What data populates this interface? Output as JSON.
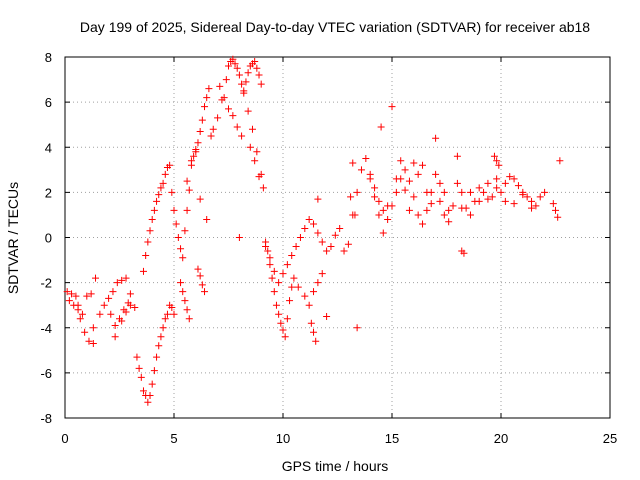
{
  "chart_data": {
    "type": "scatter",
    "title": "Day 199 of 2025, Sidereal Day-to-day VTEC variation (SDTVAR) for receiver ab18",
    "xlabel": "GPS time / hours",
    "ylabel": "SDTVAR / TECUs",
    "xlim": [
      0,
      25
    ],
    "ylim": [
      -8,
      8
    ],
    "xticks": [
      0,
      5,
      10,
      15,
      20,
      25
    ],
    "yticks": [
      -8,
      -6,
      -4,
      -2,
      0,
      2,
      4,
      6,
      8
    ],
    "xtick_labels": [
      "0",
      "5",
      "10",
      "15",
      "20",
      "25"
    ],
    "ytick_labels": [
      "-8",
      "-6",
      "-4",
      "-2",
      "0",
      "2",
      "4",
      "6",
      "8"
    ],
    "grid": true,
    "marker": "+",
    "marker_color": "#ff0000",
    "series": [
      {
        "name": "ab18",
        "x": [
          0.1,
          0.3,
          0.5,
          0.6,
          0.8,
          1.0,
          1.2,
          0.2,
          0.4,
          0.6,
          0.7,
          0.9,
          1.1,
          1.3,
          1.4,
          1.3,
          1.6,
          1.8,
          2.0,
          2.2,
          2.4,
          2.6,
          2.8,
          3.0,
          2.1,
          2.3,
          2.5,
          2.7,
          2.9,
          2.3,
          2.6,
          2.8,
          3.0,
          3.2,
          3.3,
          3.4,
          3.5,
          3.6,
          3.7,
          3.8,
          3.9,
          4.0,
          4.1,
          4.2,
          4.3,
          4.4,
          4.5,
          4.6,
          4.7,
          4.8,
          4.9,
          5.0,
          3.6,
          3.7,
          3.8,
          3.9,
          4.0,
          4.1,
          4.2,
          4.3,
          4.4,
          4.5,
          4.6,
          4.7,
          4.8,
          4.9,
          5.0,
          5.1,
          5.2,
          5.3,
          5.4,
          5.5,
          5.6,
          5.7,
          5.8,
          5.9,
          6.0,
          6.1,
          6.2,
          6.3,
          6.4,
          6.5,
          6.6,
          6.7,
          6.8,
          7.0,
          7.2,
          7.4,
          7.5,
          7.6,
          7.7,
          7.8,
          7.9,
          8.0,
          8.1,
          8.2,
          8.3,
          8.4,
          8.5,
          8.6,
          8.7,
          8.8,
          8.9,
          9.0,
          8.2,
          8.4,
          8.6,
          8.8,
          9.0,
          5.3,
          5.4,
          5.5,
          5.6,
          5.7,
          6.1,
          6.2,
          6.3,
          6.4,
          5.6,
          5.8,
          6.0,
          6.2,
          6.5,
          7.1,
          7.3,
          7.5,
          7.7,
          7.9,
          8.1,
          8.5,
          8.7,
          8.9,
          9.1,
          9.2,
          9.3,
          9.4,
          9.5,
          9.6,
          9.7,
          9.8,
          9.9,
          10.0,
          10.1,
          10.2,
          10.3,
          10.4,
          10.5,
          10.7,
          11.0,
          11.2,
          11.4,
          11.6,
          11.8,
          12.0,
          11.3,
          11.4,
          11.5,
          11.6,
          8.0,
          9.2,
          9.4,
          9.6,
          9.8,
          10.0,
          10.2,
          10.4,
          10.6,
          10.8,
          11.0,
          11.2,
          11.4,
          11.6,
          11.8,
          12.0,
          12.2,
          12.4,
          12.6,
          12.8,
          13.0,
          13.2,
          13.4,
          13.6,
          13.8,
          14.0,
          14.2,
          14.4,
          14.6,
          14.8,
          15.0,
          15.2,
          15.4,
          15.6,
          15.8,
          16.0,
          16.2,
          16.4,
          16.6,
          16.8,
          17.0,
          17.2,
          17.4,
          17.6,
          17.8,
          18.0,
          18.2,
          18.4,
          18.6,
          18.8,
          19.0,
          19.2,
          19.4,
          19.6,
          19.8,
          20.0,
          20.2,
          20.4,
          20.6,
          20.8,
          21.0,
          21.2,
          21.4,
          21.6,
          21.8,
          22.0,
          22.4,
          22.5,
          22.6,
          22.7,
          14.0,
          14.2,
          14.4,
          14.6,
          14.8,
          15.2,
          15.4,
          15.6,
          15.8,
          16.2,
          16.4,
          16.6,
          16.8,
          17.2,
          17.4,
          17.6,
          18.2,
          18.6,
          19.0,
          19.4,
          19.8,
          20.2,
          20.6,
          21.0,
          21.4,
          13.1,
          13.2,
          13.3,
          13.4,
          14.5,
          15.0,
          16.0,
          17.0,
          18.0,
          18.2,
          18.3,
          19.7,
          19.8,
          19.9
        ],
        "y": [
          -2.4,
          -2.5,
          -2.6,
          -3.0,
          -3.4,
          -2.6,
          -2.5,
          -2.8,
          -3.0,
          -3.2,
          -3.6,
          -4.2,
          -4.6,
          -4.7,
          -1.8,
          -4.0,
          -3.4,
          -3.0,
          -2.7,
          -2.4,
          -2.0,
          -1.9,
          -1.8,
          -2.5,
          -3.4,
          -3.9,
          -3.6,
          -3.2,
          -2.9,
          -4.4,
          -3.7,
          -3.3,
          -3.0,
          -3.1,
          -5.3,
          -5.8,
          -6.2,
          -6.8,
          -7.0,
          -7.3,
          -7.0,
          -6.5,
          -5.9,
          -5.3,
          -4.8,
          -4.4,
          -4.0,
          -3.6,
          -3.4,
          -3.0,
          -3.1,
          -3.4,
          -1.5,
          -0.8,
          -0.2,
          0.3,
          0.8,
          1.2,
          1.6,
          1.9,
          2.2,
          2.4,
          2.8,
          3.1,
          3.2,
          2.0,
          1.2,
          0.6,
          0.0,
          -0.5,
          -0.9,
          0.3,
          1.2,
          2.1,
          3.2,
          3.6,
          3.8,
          4.2,
          4.7,
          5.2,
          5.8,
          6.2,
          6.6,
          4.5,
          4.8,
          5.3,
          6.1,
          7.0,
          7.6,
          7.8,
          7.9,
          7.7,
          7.5,
          7.2,
          6.8,
          6.5,
          6.9,
          7.3,
          7.6,
          7.7,
          7.8,
          7.5,
          7.2,
          6.8,
          6.4,
          5.6,
          4.8,
          3.8,
          2.8,
          -2.0,
          -2.4,
          -2.8,
          -3.2,
          -3.6,
          -1.4,
          -1.7,
          -2.1,
          -2.4,
          2.5,
          3.4,
          3.9,
          1.7,
          0.8,
          6.7,
          6.2,
          5.7,
          5.4,
          4.9,
          4.5,
          4.0,
          3.4,
          2.7,
          2.2,
          -0.2,
          -0.6,
          -1.2,
          -1.8,
          -2.4,
          -3.0,
          -3.4,
          -3.8,
          -4.1,
          -4.4,
          -3.6,
          -2.8,
          -2.2,
          -1.8,
          -2.2,
          -2.6,
          -3.0,
          -2.4,
          -2.0,
          -1.6,
          -3.5,
          -3.8,
          -4.2,
          -4.6,
          1.7,
          0.0,
          -0.4,
          -0.9,
          -1.5,
          -2.0,
          -1.6,
          -1.2,
          -0.8,
          -0.4,
          0.0,
          0.4,
          0.8,
          0.6,
          0.2,
          -0.2,
          -0.6,
          -0.4,
          0.1,
          0.4,
          -0.6,
          -0.3,
          1.0,
          2.0,
          3.0,
          3.5,
          2.8,
          2.2,
          1.6,
          1.2,
          0.8,
          1.4,
          2.0,
          2.6,
          3.0,
          2.5,
          1.8,
          1.0,
          0.6,
          1.2,
          2.0,
          2.8,
          1.6,
          1.0,
          0.7,
          1.4,
          2.4,
          2.0,
          1.3,
          1.0,
          1.6,
          2.2,
          2.0,
          1.7,
          1.8,
          2.2,
          2.0,
          2.4,
          2.7,
          2.6,
          2.3,
          2.0,
          1.8,
          1.6,
          1.4,
          1.8,
          2.0,
          1.5,
          1.2,
          0.9,
          3.4,
          2.6,
          1.8,
          1.0,
          0.2,
          1.4,
          2.6,
          3.4,
          2.1,
          1.2,
          2.8,
          3.2,
          2.0,
          1.5,
          2.4,
          2.0,
          1.2,
          1.3,
          2.0,
          1.6,
          2.4,
          2.6,
          1.6,
          1.5,
          1.9,
          1.3,
          1.8,
          3.3,
          1.0,
          -4.0,
          4.9,
          5.8,
          3.3,
          4.4,
          3.6,
          -0.6,
          -0.7,
          3.6,
          3.4,
          3.2
        ]
      }
    ]
  }
}
